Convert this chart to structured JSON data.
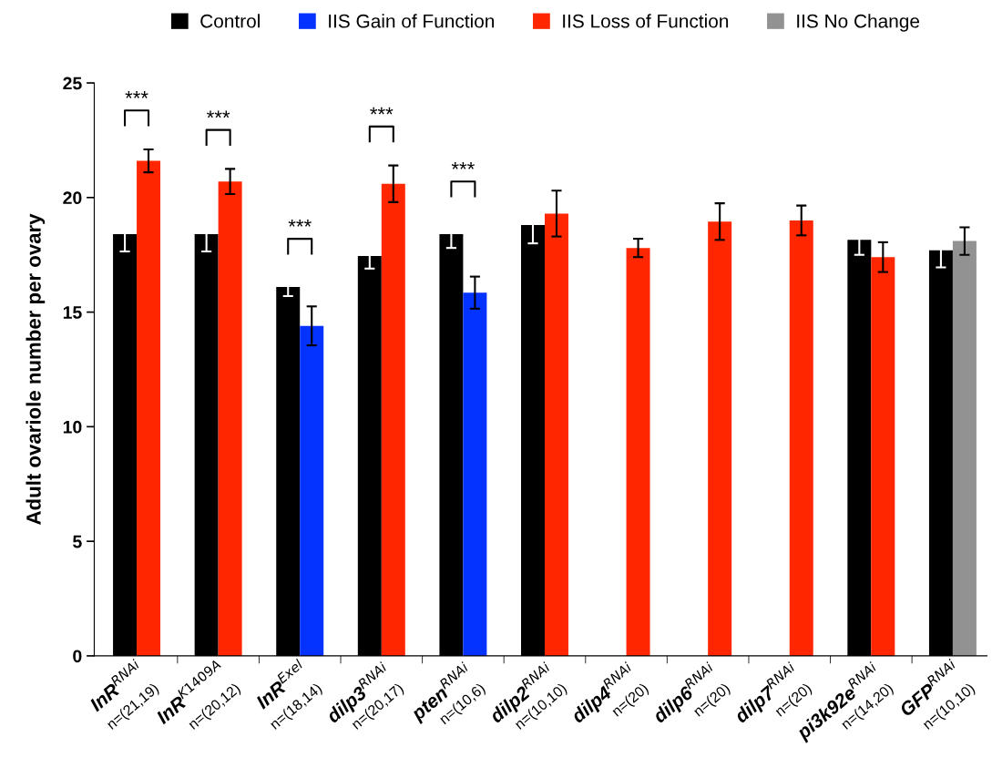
{
  "chart_data": {
    "type": "bar",
    "ylabel": "Adult ovariole number per ovary",
    "categories": [
      "InR$^{RNAi}$\nn=(21,19)",
      "InR$^{K1409A}$\nn=(20,12)",
      "InR$^{Exel}$\nn=(18,14)",
      "dilp3$^{RNAi}$\nn=(20,17)",
      "pten$^{RNAi}$\nn=(10,6)",
      "dilp2$^{RNAi}$\nn=(10,10)",
      "dilp4$^{RNAi}$\nn=(20)",
      "dilp6$^{RNAi}$\nn=(20)",
      "dilp7$^{RNAi}$\nn=(20)",
      "pi3k92e$^{RNAi}$\nn=(14,20)",
      "GFP$^{RNAi}$\nn=(10,10)"
    ],
    "series": [
      {
        "name": "Control",
        "color": "#000000",
        "values": [
          18.4,
          18.4,
          16.1,
          17.45,
          18.4,
          18.8,
          null,
          null,
          null,
          18.15,
          17.7
        ],
        "errors": [
          0.75,
          0.75,
          0.4,
          0.55,
          0.6,
          0.8,
          null,
          null,
          null,
          0.65,
          0.75
        ]
      },
      {
        "name": "IIS Gain of Function",
        "color": "#0433ff",
        "values": [
          null,
          null,
          14.4,
          null,
          15.85,
          null,
          null,
          null,
          null,
          null,
          null
        ],
        "errors": [
          null,
          null,
          0.85,
          null,
          0.7,
          null,
          null,
          null,
          null,
          null,
          null
        ]
      },
      {
        "name": "IIS Loss of Function",
        "color": "#ff2600",
        "values": [
          21.6,
          20.7,
          null,
          20.6,
          null,
          19.3,
          17.8,
          18.95,
          19.0,
          17.4,
          null
        ],
        "errors": [
          0.5,
          0.55,
          null,
          0.8,
          null,
          1.0,
          0.4,
          0.8,
          0.65,
          0.65,
          null
        ]
      },
      {
        "name": "IIS No Change",
        "color": "#929292",
        "values": [
          null,
          null,
          null,
          null,
          null,
          null,
          null,
          null,
          null,
          null,
          18.1
        ],
        "errors": [
          null,
          null,
          null,
          null,
          null,
          null,
          null,
          null,
          null,
          null,
          0.6
        ]
      }
    ],
    "ylim": [
      0,
      25
    ],
    "yticks": [
      0,
      5,
      10,
      15,
      20,
      25
    ],
    "annotations": [
      "***",
      "***",
      "***",
      "***",
      "***"
    ],
    "legend": "top",
    "grid": false
  }
}
